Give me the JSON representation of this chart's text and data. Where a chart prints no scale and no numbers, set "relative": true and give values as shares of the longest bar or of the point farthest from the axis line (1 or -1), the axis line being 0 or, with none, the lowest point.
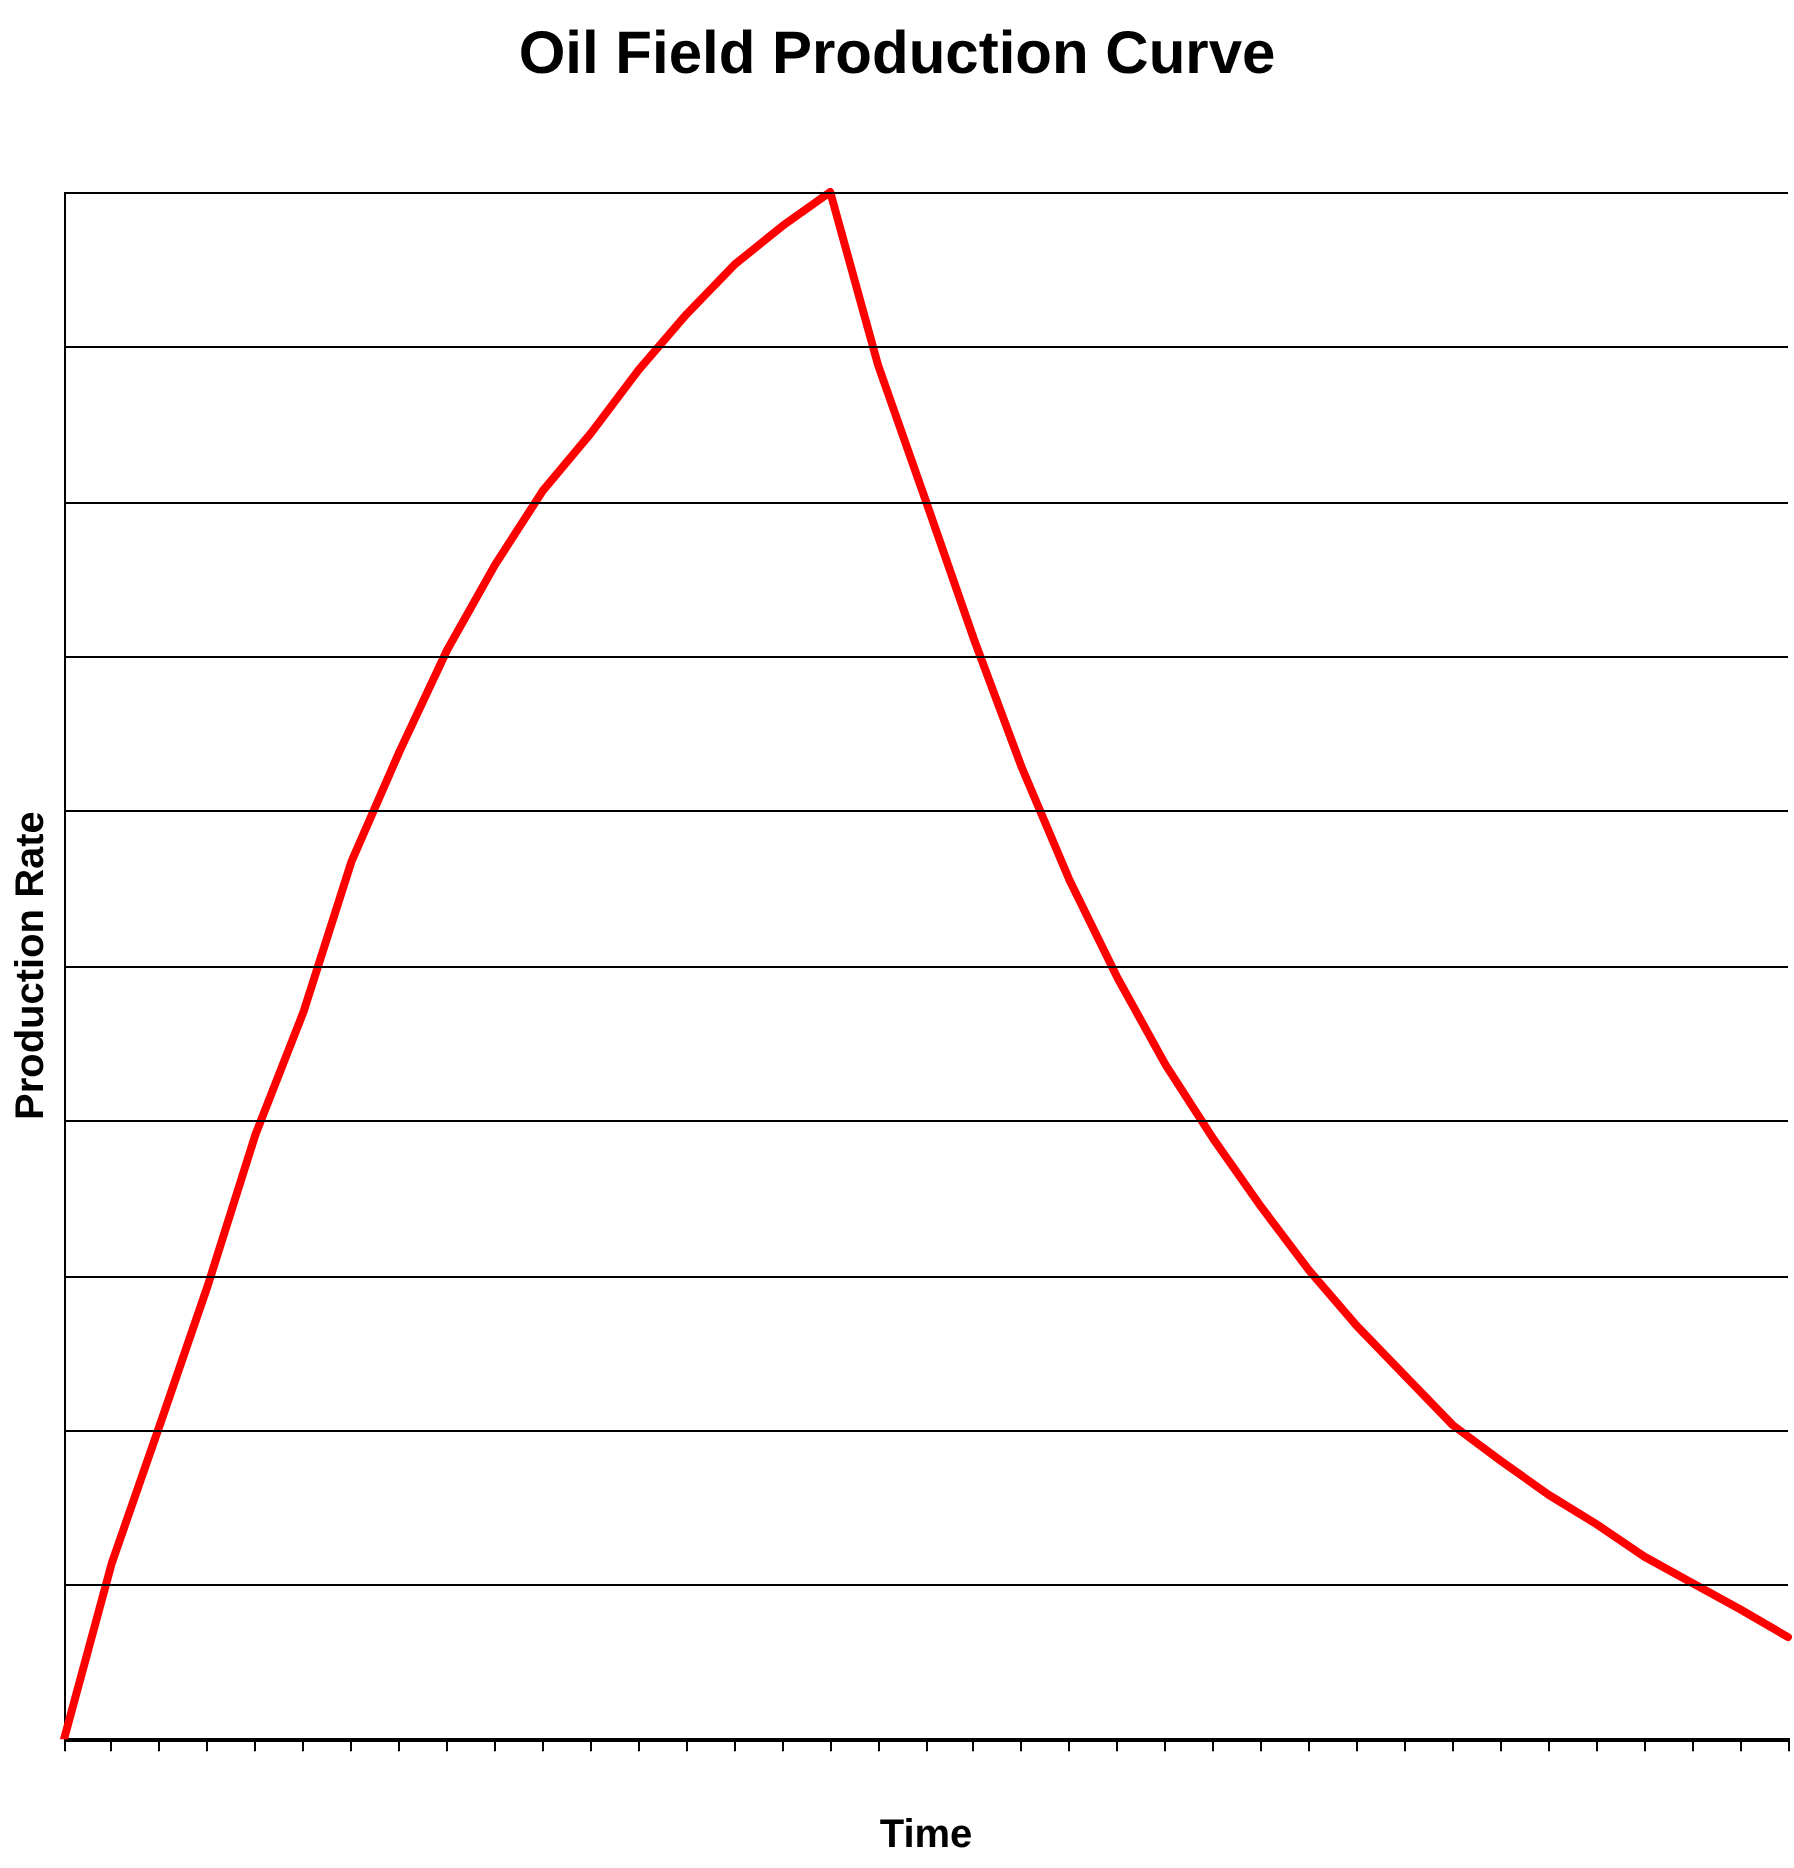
{
  "chart_data": {
    "type": "line",
    "title": "Oil Field Production Curve",
    "xlabel": "Time",
    "ylabel": "Production Rate",
    "relative": true,
    "grid": "y",
    "legend": false,
    "marker": "none",
    "line_style": "solid",
    "categories": [
      null,
      null,
      null,
      null,
      null,
      null,
      null,
      null,
      null,
      null,
      null,
      null,
      null,
      null,
      null,
      null,
      null,
      null,
      null,
      null,
      null,
      null,
      null,
      null,
      null,
      null,
      null,
      null,
      null,
      null,
      null,
      null,
      null,
      null,
      null,
      null,
      null
    ],
    "series": [
      {
        "color": "#ff0000",
        "values": [
          0,
          0.114,
          0.203,
          0.293,
          0.391,
          0.47,
          0.567,
          0.638,
          0.704,
          0.759,
          0.807,
          0.844,
          0.885,
          0.921,
          0.953,
          0.978,
          1,
          0.888,
          0.8,
          0.711,
          0.628,
          0.555,
          0.492,
          0.436,
          0.388,
          0.344,
          0.303,
          0.267,
          0.235,
          0.203,
          0.18,
          0.158,
          0.139,
          0.118,
          0.101,
          0.084,
          0.066
        ]
      }
    ]
  }
}
